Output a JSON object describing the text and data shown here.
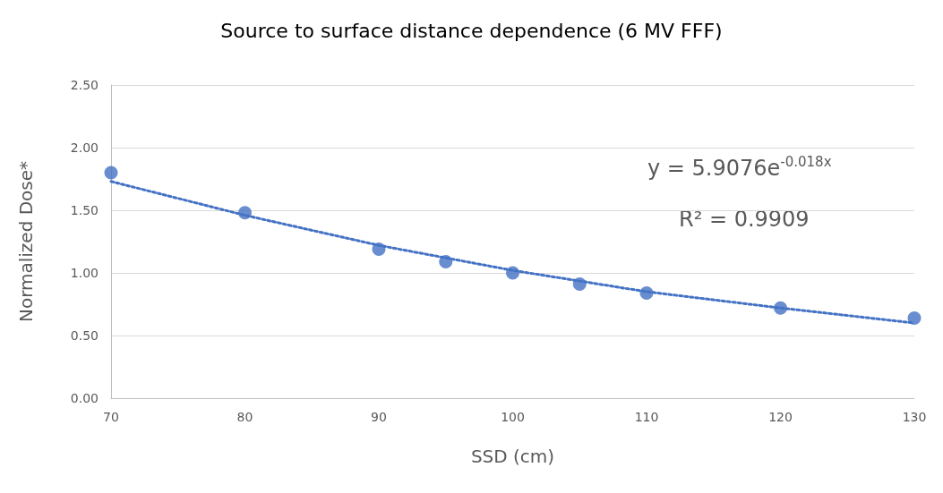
{
  "chart_data": {
    "type": "scatter",
    "title": "Source to surface distance dependence (6 MV FFF)",
    "xlabel": "SSD (cm)",
    "ylabel": "Normalized Dose*",
    "x": [
      70,
      80,
      90,
      95,
      100,
      105,
      110,
      120,
      130
    ],
    "series": [
      {
        "color": "#4472c4",
        "marker": "circle",
        "values": [
          1.8,
          1.48,
          1.19,
          1.09,
          1.0,
          0.91,
          0.84,
          0.72,
          0.64
        ]
      },
      {
        "type": "line",
        "color": "#4472c4",
        "line_style": "dotted",
        "marker": "none",
        "x": [
          70,
          80,
          90,
          100,
          110,
          120,
          130
        ],
        "values": [
          1.73,
          1.46,
          1.22,
          1.02,
          0.85,
          0.72,
          0.6
        ]
      }
    ],
    "annotations": [
      "y = 5.9076e$^{-0.018x}$",
      "R² = 0.9909"
    ],
    "xlim": [
      70,
      130
    ],
    "xticks": [
      70,
      80,
      90,
      100,
      110,
      120,
      130
    ],
    "ylim": [
      0,
      2.5
    ],
    "yticks": [
      {
        "value": 0,
        "label": "0.00"
      },
      {
        "value": 0.5,
        "label": "0.50"
      },
      {
        "value": 1,
        "label": "1.00"
      },
      {
        "value": 1.5,
        "label": "1.50"
      },
      {
        "value": 2,
        "label": "2.00"
      },
      {
        "value": 2.5,
        "label": "2.50"
      }
    ],
    "grid": "y"
  }
}
